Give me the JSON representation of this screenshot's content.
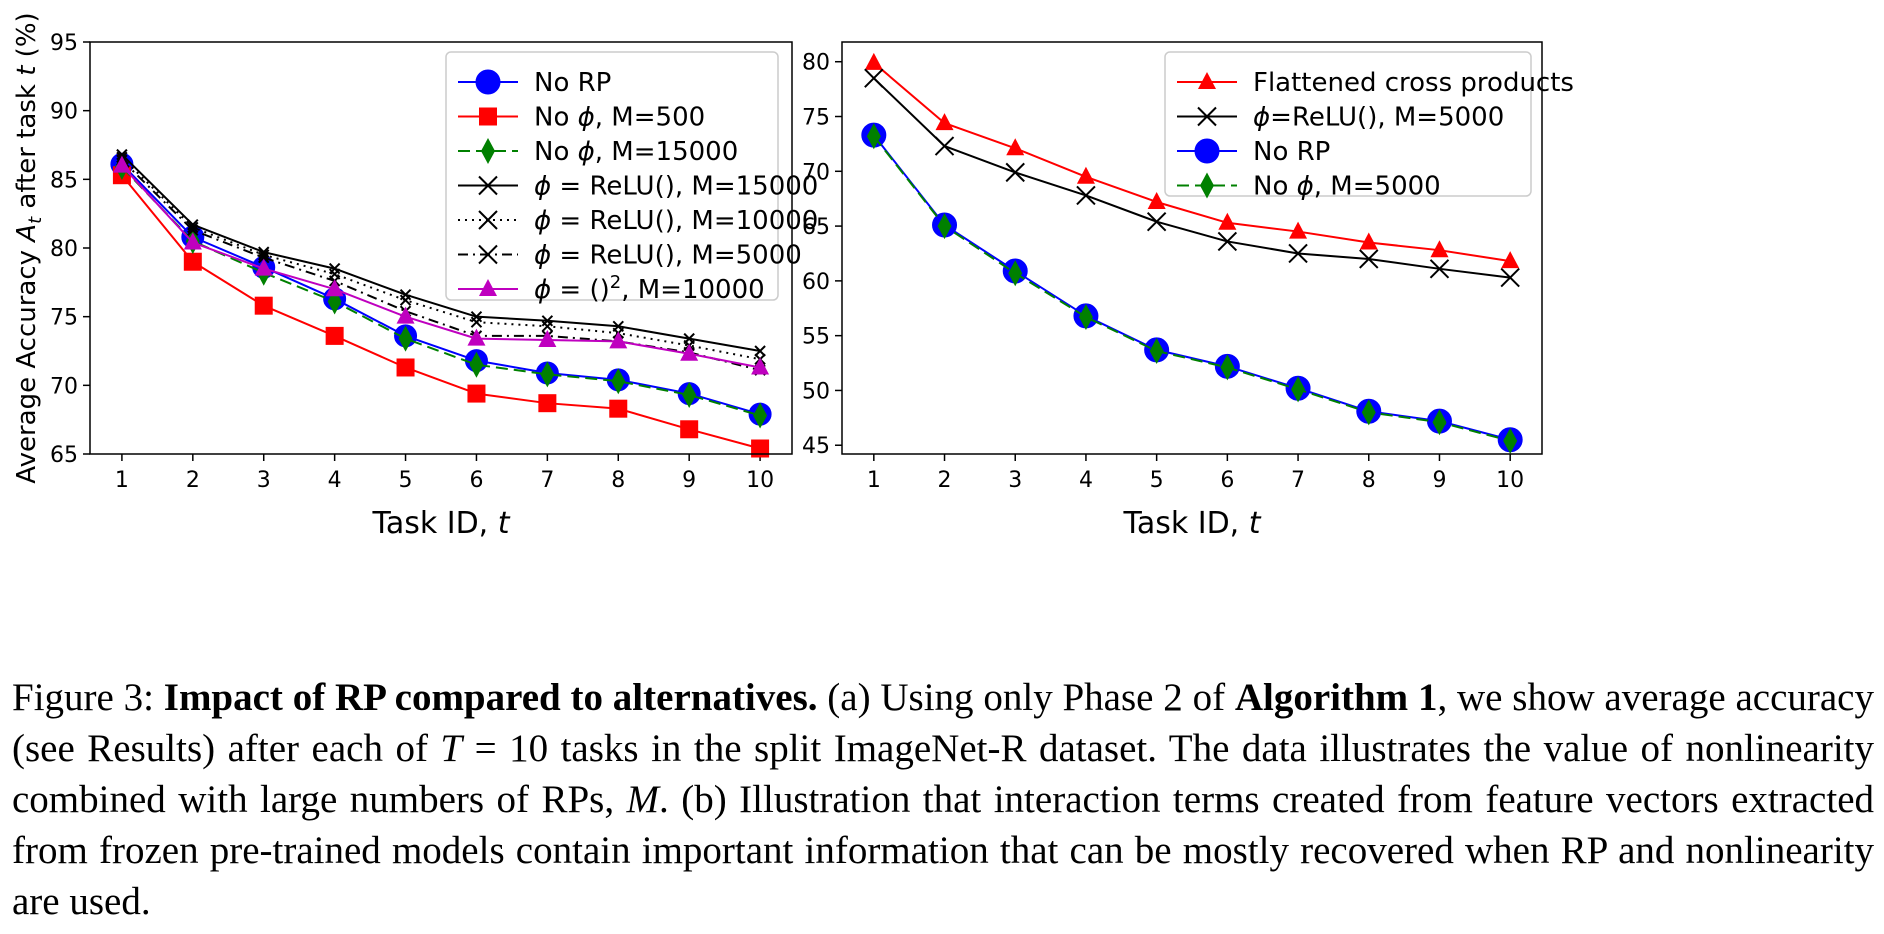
{
  "chart_data": [
    {
      "type": "line",
      "panel": "a",
      "xlabel": "Task ID, t",
      "ylabel": "Average Accuracy A_t after task t (%)",
      "x": [
        1,
        2,
        3,
        4,
        5,
        6,
        7,
        8,
        9,
        10
      ],
      "xlim": [
        0.55,
        10.45
      ],
      "ylim": [
        65,
        95
      ],
      "yticks": [
        65,
        70,
        75,
        80,
        85,
        90,
        95
      ],
      "legend_position": "top-right",
      "series": [
        {
          "name": "No RP",
          "color": "#0000ff",
          "marker": "circle",
          "linestyle": "solid",
          "values": [
            86.1,
            80.8,
            78.6,
            76.3,
            73.6,
            71.8,
            70.9,
            70.4,
            69.4,
            67.9
          ]
        },
        {
          "name": "No ϕ, M=500",
          "color": "#ff0000",
          "marker": "square",
          "linestyle": "solid",
          "values": [
            85.3,
            79.0,
            75.8,
            73.6,
            71.3,
            69.4,
            68.7,
            68.3,
            66.8,
            65.4
          ]
        },
        {
          "name": "No ϕ, M=15000",
          "color": "#008000",
          "marker": "diamond",
          "linestyle": "dashed",
          "values": [
            85.9,
            80.5,
            78.2,
            76.1,
            73.4,
            71.5,
            70.8,
            70.3,
            69.3,
            67.8
          ]
        },
        {
          "name": "ϕ = ReLU(), M=15000",
          "color": "#000000",
          "marker": "x",
          "linestyle": "solid",
          "values": [
            86.8,
            81.7,
            79.7,
            78.5,
            76.6,
            75.0,
            74.7,
            74.3,
            73.4,
            72.5
          ]
        },
        {
          "name": "ϕ = ReLU(), M=10000",
          "color": "#000000",
          "marker": "x",
          "linestyle": "dotted",
          "values": [
            86.6,
            81.5,
            79.5,
            78.1,
            76.2,
            74.6,
            74.3,
            73.8,
            72.9,
            71.9
          ]
        },
        {
          "name": "ϕ = ReLU(), M=5000",
          "color": "#000000",
          "marker": "x",
          "linestyle": "dashdot",
          "values": [
            86.4,
            81.3,
            79.3,
            77.6,
            75.4,
            73.6,
            73.6,
            73.2,
            72.4,
            71.1
          ]
        },
        {
          "name": "ϕ = ()², M=10000",
          "color": "#bf00bf",
          "marker": "triangle",
          "linestyle": "solid",
          "values": [
            86.0,
            80.4,
            78.5,
            77.0,
            75.0,
            73.4,
            73.3,
            73.2,
            72.3,
            71.3
          ]
        }
      ]
    },
    {
      "type": "line",
      "panel": "b",
      "xlabel": "Task ID, t",
      "ylabel": "",
      "x": [
        1,
        2,
        3,
        4,
        5,
        6,
        7,
        8,
        9,
        10
      ],
      "xlim": [
        0.55,
        10.45
      ],
      "ylim": [
        44.2,
        81.8
      ],
      "yticks": [
        45,
        50,
        55,
        60,
        65,
        70,
        75,
        80
      ],
      "legend_position": "top-right",
      "series": [
        {
          "name": "Flattened cross products",
          "color": "#ff0000",
          "marker": "triangle",
          "linestyle": "solid",
          "values": [
            79.9,
            74.4,
            72.1,
            69.5,
            67.2,
            65.3,
            64.5,
            63.5,
            62.8,
            61.8
          ]
        },
        {
          "name": "ϕ=ReLU(), M=5000",
          "color": "#000000",
          "marker": "x",
          "linestyle": "solid",
          "values": [
            78.5,
            72.3,
            69.9,
            67.8,
            65.4,
            63.6,
            62.5,
            62.0,
            61.1,
            60.3
          ]
        },
        {
          "name": "No RP",
          "color": "#0000ff",
          "marker": "circle",
          "linestyle": "solid",
          "values": [
            73.3,
            65.1,
            60.9,
            56.8,
            53.7,
            52.2,
            50.2,
            48.1,
            47.2,
            45.5
          ]
        },
        {
          "name": "No ϕ, M=5000",
          "color": "#008000",
          "marker": "diamond",
          "linestyle": "dashed",
          "values": [
            73.2,
            65.0,
            60.7,
            56.7,
            53.6,
            52.1,
            50.1,
            48.0,
            47.1,
            45.4
          ]
        }
      ]
    }
  ],
  "caption": {
    "label": "Figure 3:",
    "bold_title": "Impact of RP compared to alternatives.",
    "text_1": " (a) Using only Phase 2 of ",
    "bold_algo": "Algorithm 1",
    "text_2": ", we show average accuracy (see Results) after each of ",
    "math_T": "T",
    "text_3": " = 10 tasks in the split ImageNet-R dataset. The data illustrates the value of nonlinearity combined with large numbers of RPs, ",
    "math_M": "M",
    "text_4": ". (b) Illustration that interaction terms created from feature vectors extracted from frozen pre-trained models contain important information that can be mostly recovered when RP and nonlinearity are used."
  }
}
